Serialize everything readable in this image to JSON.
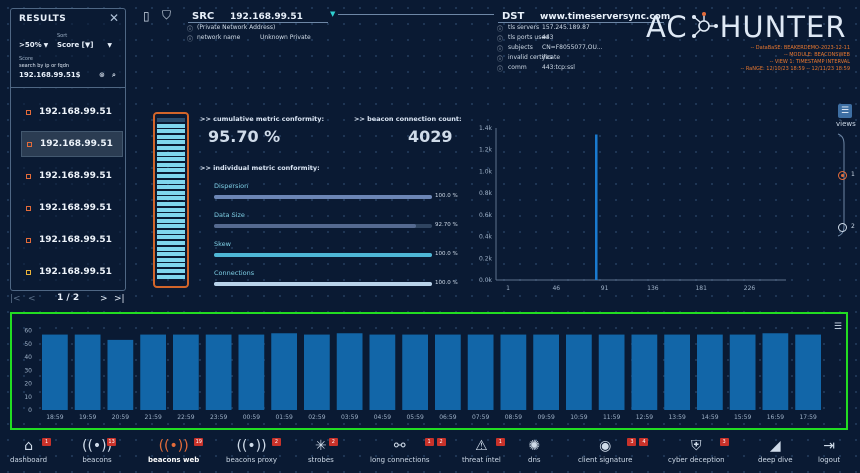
{
  "results": {
    "title": "RESULTS",
    "filter_value": ">50%",
    "score_label": "Score",
    "sort_label": "Sort",
    "sort_value": "Score [▼]",
    "search_hint": "search by ip or fqdn",
    "search_value": "192.168.99.51$",
    "items": [
      {
        "ip": "192.168.99.51",
        "marker": "#e36b3a"
      },
      {
        "ip": "192.168.99.51",
        "marker": "#e36b3a",
        "active": true
      },
      {
        "ip": "192.168.99.51",
        "marker": "#e36b3a"
      },
      {
        "ip": "192.168.99.51",
        "marker": "#e36b3a"
      },
      {
        "ip": "192.168.99.51",
        "marker": "#e36b3a"
      },
      {
        "ip": "192.168.99.51",
        "marker": "#e8b23a"
      }
    ],
    "pager": {
      "first": "|<",
      "prev": "<",
      "page": "1 / 2",
      "next": ">",
      "last": ">|"
    }
  },
  "src": {
    "label": "SRC",
    "ip": "192.168.99.51",
    "network_address": "(Private Network Address)",
    "network_name_label": "network name",
    "network_name_value": "Unknown Private"
  },
  "dst": {
    "label": "DST",
    "host": "www.timeserversync.com",
    "fields": [
      {
        "label": "tls servers",
        "value": "157.245.189.87"
      },
      {
        "label": "tls ports used",
        "value": "443"
      },
      {
        "label": "subjects",
        "value": "CN=F8055077,OU..."
      },
      {
        "label": "invalid certificate",
        "value": "yes"
      },
      {
        "label": "comm",
        "value": "443:tcp:ssl"
      }
    ]
  },
  "logo": {
    "text_ac": "AC",
    "text_hunter": "HUNTER"
  },
  "meta": {
    "database": "-- DataBaSE: BEAKERDEMO-2023-12-11",
    "module": "-- MODULE: BEACONSWEB",
    "view": "-- VIEW 1: TIMESTAMP INTERVAL",
    "range": "-- RaNGE: 12/10/23 18:59 -- 12/11/23 18:59"
  },
  "stats": {
    "cumulative_label": ">> cumulative metric conformity:",
    "cumulative_value": "95.70 %",
    "count_label": ">> beacon connection count:",
    "count_value": "4029",
    "individual_label": ">> individual metric conformity:",
    "metrics": [
      {
        "name": "Dispersion",
        "value": 1.0,
        "pct": "100.0 %",
        "color": "#6c86b6"
      },
      {
        "name": "Data Size",
        "value": 0.927,
        "pct": "92.70 %",
        "color": "#556a90"
      },
      {
        "name": "Skew",
        "value": 1.0,
        "pct": "100.0 %",
        "color": "#4fb7d6"
      },
      {
        "name": "Connections",
        "value": 1.0,
        "pct": "100.0 %",
        "color": "#b9d3ea"
      }
    ]
  },
  "gauge": {
    "level": 0.957
  },
  "views": {
    "label": "views",
    "option1": "1",
    "option2": "2"
  },
  "top_chart_data": {
    "type": "bar",
    "y_ticks": [
      "0.0k",
      "0.2k",
      "0.4k",
      "0.6k",
      "0.8k",
      "1.0k",
      "1.2k",
      "1.4k"
    ],
    "x_ticks": [
      "1",
      "46",
      "91",
      "136",
      "181",
      "226"
    ],
    "ylim": [
      0,
      1400
    ],
    "xlim": [
      1,
      260
    ],
    "bars": [
      {
        "x": 83,
        "y": 1340
      }
    ]
  },
  "chart_data": {
    "type": "bar",
    "categories": [
      "18:59",
      "19:59",
      "20:59",
      "21:59",
      "22:59",
      "23:59",
      "00:59",
      "01:59",
      "02:59",
      "03:59",
      "04:59",
      "05:59",
      "06:59",
      "07:59",
      "08:59",
      "09:59",
      "10:59",
      "11:59",
      "12:59",
      "13:59",
      "14:59",
      "15:59",
      "16:59",
      "17:59"
    ],
    "values": [
      57,
      57,
      53,
      57,
      57,
      57,
      57,
      58,
      57,
      58,
      57,
      57,
      57,
      57,
      57,
      57,
      57,
      57,
      57,
      57,
      57,
      57,
      58,
      57
    ],
    "y_ticks": [
      "0",
      "10",
      "20",
      "30",
      "40",
      "50",
      "60"
    ],
    "ylim": [
      0,
      65
    ],
    "bar_color": "#1266a8",
    "menu_icon": "hamburger-icon"
  },
  "nav": [
    {
      "label": "dashboard",
      "icon": "home-icon",
      "glyph": "⌂",
      "badge": "1"
    },
    {
      "label": "beacons",
      "icon": "beacon-icon",
      "glyph": "((•))",
      "badge": "13"
    },
    {
      "label": "beacons web",
      "icon": "beacon-web-icon",
      "glyph": "((•))",
      "badge": "19",
      "active": true
    },
    {
      "label": "beacons proxy",
      "icon": "beacon-proxy-icon",
      "glyph": "((•))",
      "badge": "2"
    },
    {
      "label": "strobes",
      "icon": "strobe-icon",
      "glyph": "✳",
      "badge": "2"
    },
    {
      "label": "long connections",
      "icon": "connections-icon",
      "glyph": "⚯",
      "badge": "1",
      "badge2": "2"
    },
    {
      "label": "threat intel",
      "icon": "warning-icon",
      "glyph": "⚠",
      "badge": "1"
    },
    {
      "label": "dns",
      "icon": "dns-icon",
      "glyph": "✺"
    },
    {
      "label": "client signature",
      "icon": "fingerprint-icon",
      "glyph": "◉",
      "badge": "3",
      "badge2": "4"
    },
    {
      "label": "cyber deception",
      "icon": "shield-icon",
      "glyph": "⛨",
      "badge": "3"
    },
    {
      "label": "deep dive",
      "icon": "shark-fin-icon",
      "glyph": "◢"
    },
    {
      "label": "logout",
      "icon": "logout-icon",
      "glyph": "⇥"
    }
  ]
}
